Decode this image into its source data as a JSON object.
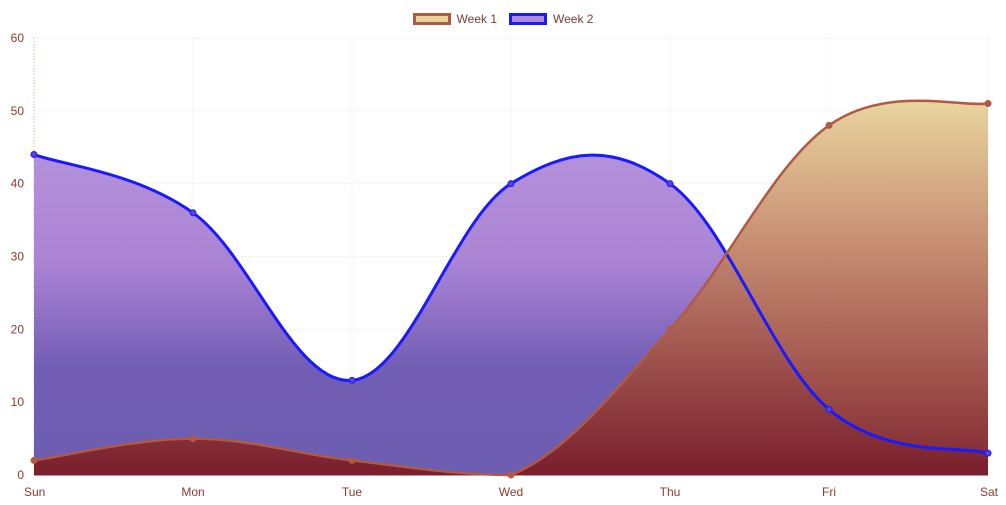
{
  "chart_data": {
    "type": "area",
    "categories": [
      "Sun",
      "Mon",
      "Tue",
      "Wed",
      "Thu",
      "Fri",
      "Sat"
    ],
    "series": [
      {
        "name": "Week 1",
        "values": [
          2,
          5,
          2,
          0,
          20,
          48,
          51
        ],
        "stroke": "#b05a44",
        "point_color": "#b05a44",
        "fill_gradient": [
          "#e7d39a",
          "#c99171",
          "#a3564a",
          "#7a1b26"
        ]
      },
      {
        "name": "Week 2",
        "values": [
          44,
          36,
          13,
          40,
          40,
          9,
          3
        ],
        "stroke": "#1a1aff",
        "point_color": "#5a3fd8",
        "fill_gradient": [
          "#b08bd8",
          "#a77dd2",
          "#6a55b0",
          "#6555ad"
        ]
      }
    ],
    "ylim": [
      0,
      60
    ],
    "yticks": [
      0,
      10,
      20,
      30,
      40,
      50,
      60
    ],
    "grid": true,
    "legend_position": "top-center",
    "xlabel": "",
    "ylabel": ""
  }
}
